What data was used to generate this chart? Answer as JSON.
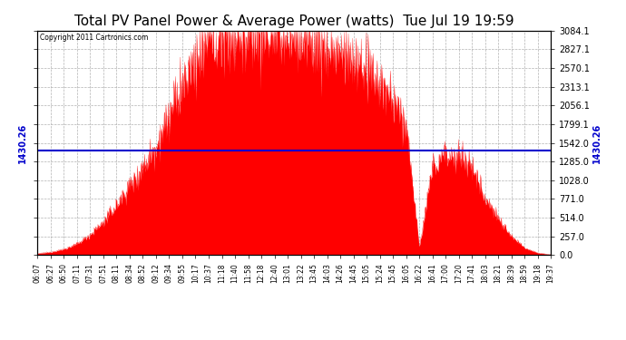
{
  "title": "Total PV Panel Power & Average Power (watts)  Tue Jul 19 19:59",
  "copyright": "Copyright 2011 Cartronics.com",
  "avg_power": 1430.26,
  "ymax": 3084.1,
  "ymin": 0.0,
  "yticks": [
    0.0,
    257.0,
    514.0,
    771.0,
    1028.0,
    1285.0,
    1542.0,
    1799.1,
    2056.1,
    2313.1,
    2570.1,
    2827.1,
    3084.1
  ],
  "fill_color": "#FF0000",
  "line_color": "#0000CC",
  "background_color": "#FFFFFF",
  "grid_color": "#AAAAAA",
  "title_fontsize": 11,
  "x_labels": [
    "06:07",
    "06:27",
    "06:50",
    "07:11",
    "07:31",
    "07:51",
    "08:11",
    "08:34",
    "08:52",
    "09:12",
    "09:34",
    "09:55",
    "10:17",
    "10:37",
    "11:18",
    "11:40",
    "11:58",
    "12:18",
    "12:40",
    "13:01",
    "13:22",
    "13:45",
    "14:03",
    "14:26",
    "14:45",
    "15:05",
    "15:24",
    "15:45",
    "16:05",
    "16:22",
    "16:41",
    "17:00",
    "17:20",
    "17:41",
    "18:03",
    "18:21",
    "18:39",
    "18:59",
    "19:18",
    "19:37"
  ],
  "figsize": [
    6.9,
    3.75
  ],
  "dpi": 100,
  "power_values": [
    20,
    40,
    80,
    150,
    280,
    450,
    680,
    950,
    1200,
    1500,
    1900,
    2300,
    2650,
    2900,
    2980,
    2950,
    2970,
    3000,
    2980,
    2960,
    2920,
    2880,
    2820,
    2750,
    2650,
    2500,
    2350,
    2100,
    1800,
    100,
    1200,
    1400,
    1350,
    1200,
    800,
    500,
    250,
    100,
    30,
    5
  ]
}
